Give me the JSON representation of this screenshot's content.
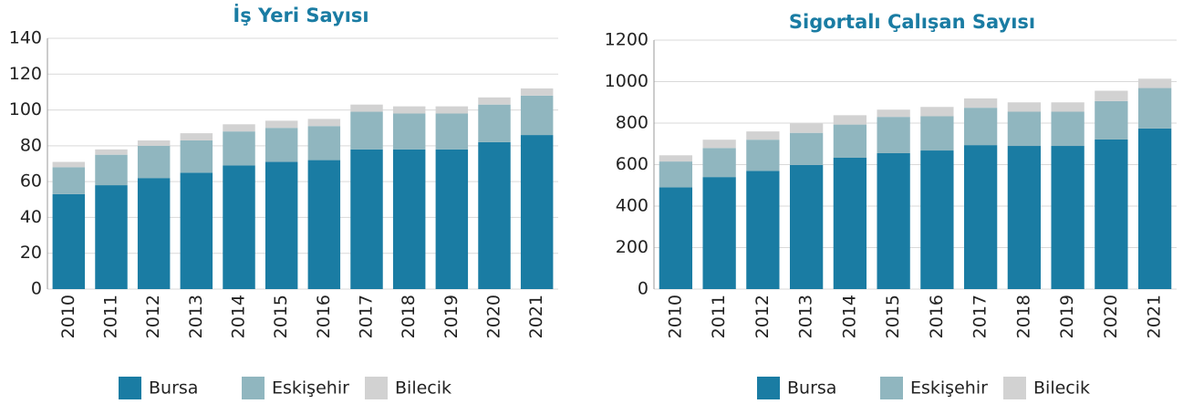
{
  "chart_data": [
    {
      "type": "bar",
      "stacked": true,
      "title": "İş Yeri Sayısı",
      "categories": [
        "2010",
        "2011",
        "2012",
        "2013",
        "2014",
        "2015",
        "2016",
        "2017",
        "2018",
        "2019",
        "2020",
        "2021"
      ],
      "series": [
        {
          "name": "Bursa",
          "color": "#1a7ca3",
          "values": [
            53,
            58,
            62,
            65,
            69,
            71,
            72,
            78,
            78,
            78,
            82,
            86
          ]
        },
        {
          "name": "Eskişehir",
          "color": "#90b6bf",
          "values": [
            15,
            17,
            18,
            18,
            19,
            19,
            19,
            21,
            20,
            20,
            21,
            22
          ]
        },
        {
          "name": "Bilecik",
          "color": "#d2d2d2",
          "values": [
            3,
            3,
            3,
            4,
            4,
            4,
            4,
            4,
            4,
            4,
            4,
            4
          ]
        }
      ],
      "ylim": [
        0,
        140
      ],
      "yticks": [
        0,
        20,
        40,
        60,
        80,
        100,
        120,
        140
      ],
      "grid": true,
      "legend": "bottom"
    },
    {
      "type": "bar",
      "stacked": true,
      "title": "Sigortalı Çalışan Sayısı",
      "categories": [
        "2010",
        "2011",
        "2012",
        "2013",
        "2014",
        "2015",
        "2016",
        "2017",
        "2018",
        "2019",
        "2020",
        "2021"
      ],
      "series": [
        {
          "name": "Bursa",
          "color": "#1a7ca3",
          "values": [
            490,
            540,
            570,
            598,
            633,
            655,
            668,
            694,
            690,
            690,
            721,
            774
          ]
        },
        {
          "name": "Eskişehir",
          "color": "#90b6bf",
          "values": [
            125,
            140,
            150,
            155,
            160,
            175,
            165,
            180,
            165,
            165,
            185,
            195
          ]
        },
        {
          "name": "Bilecik",
          "color": "#d2d2d2",
          "values": [
            30,
            40,
            40,
            45,
            45,
            35,
            45,
            45,
            45,
            45,
            50,
            45
          ]
        }
      ],
      "ylim": [
        0,
        1200
      ],
      "yticks": [
        0,
        200,
        400,
        600,
        800,
        1000,
        1200
      ],
      "grid": true,
      "legend": "bottom"
    }
  ]
}
